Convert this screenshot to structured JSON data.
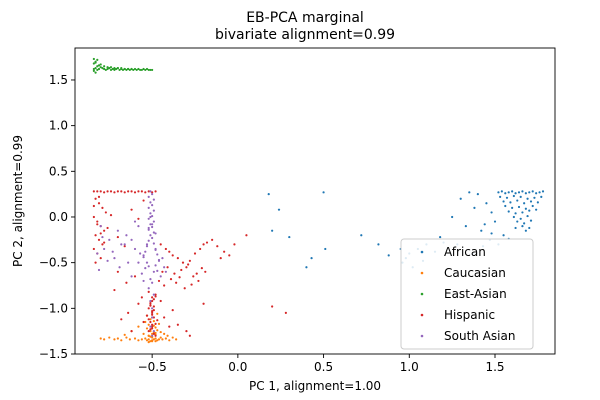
{
  "chart_data": {
    "type": "scatter",
    "title_line1": "EB-PCA marginal",
    "title_line2": "bivariate alignment=0.99",
    "xlabel": "PC 1, alignment=1.00",
    "ylabel": "PC 2, alignment=0.99",
    "xlim": [
      -0.95,
      1.85
    ],
    "ylim": [
      -1.5,
      1.85
    ],
    "xticks": [
      -0.5,
      0.0,
      0.5,
      1.0,
      1.5
    ],
    "xtick_labels": [
      "−0.5",
      "0.0",
      "0.5",
      "1.0",
      "1.5"
    ],
    "yticks": [
      -1.5,
      -1.0,
      -0.5,
      0.0,
      0.5,
      1.0,
      1.5
    ],
    "ytick_labels": [
      "−1.5",
      "−1.0",
      "−0.5",
      "0.0",
      "0.5",
      "1.0",
      "1.5"
    ],
    "grid": false,
    "legend_placement": "lower-right",
    "series": [
      {
        "name": "African",
        "color": "#1f77b4",
        "x": [
          1.52,
          1.54,
          1.56,
          1.58,
          1.6,
          1.62,
          1.64,
          1.66,
          1.68,
          1.7,
          1.72,
          1.74,
          1.76,
          1.78,
          1.53,
          1.57,
          1.61,
          1.65,
          1.69,
          1.73,
          1.77,
          1.55,
          1.59,
          1.63,
          1.67,
          1.71,
          1.75,
          1.56,
          1.6,
          1.64,
          1.68,
          1.72,
          1.58,
          1.62,
          1.66,
          1.7,
          1.74,
          1.61,
          1.65,
          1.69,
          1.63,
          1.67,
          1.71,
          1.66,
          1.7,
          1.68,
          1.4,
          1.45,
          1.48,
          1.5,
          1.35,
          1.3,
          1.42,
          1.38,
          1.55,
          1.47,
          1.33,
          1.25,
          1.28,
          1.18,
          1.1,
          1.05,
          1.0,
          0.98,
          0.96,
          1.02,
          1.08,
          1.15,
          1.2,
          0.82,
          0.88,
          0.72,
          0.95,
          1.43,
          1.37,
          1.52,
          1.48,
          1.58,
          1.62,
          1.44,
          0.5,
          0.51,
          0.43,
          0.4,
          0.3,
          0.24,
          0.18,
          0.2
        ],
        "y": [
          0.27,
          0.28,
          0.26,
          0.27,
          0.28,
          0.26,
          0.27,
          0.28,
          0.26,
          0.27,
          0.28,
          0.26,
          0.27,
          0.28,
          0.22,
          0.21,
          0.23,
          0.22,
          0.2,
          0.21,
          0.22,
          0.17,
          0.16,
          0.18,
          0.15,
          0.17,
          0.16,
          0.12,
          0.1,
          0.11,
          0.09,
          0.12,
          0.06,
          0.04,
          0.05,
          0.07,
          0.08,
          0.0,
          -0.02,
          0.01,
          -0.05,
          -0.07,
          -0.04,
          -0.1,
          -0.12,
          -0.15,
          0.25,
          0.15,
          0.05,
          -0.05,
          0.27,
          0.2,
          -0.15,
          0.1,
          -0.2,
          -0.25,
          -0.1,
          0.0,
          -0.3,
          -0.22,
          -0.3,
          -0.35,
          -0.4,
          -0.45,
          -0.5,
          -0.55,
          -0.48,
          -0.38,
          -0.28,
          -0.3,
          -0.42,
          -0.2,
          -0.35,
          -0.32,
          -0.4,
          -0.3,
          -0.18,
          -0.24,
          -0.12,
          -0.08,
          0.27,
          -0.35,
          -0.45,
          -0.55,
          -0.22,
          0.08,
          0.25,
          -0.15
        ]
      },
      {
        "name": "Caucasian",
        "color": "#ff7f0e",
        "x": [
          -0.8,
          -0.78,
          -0.75,
          -0.72,
          -0.7,
          -0.68,
          -0.65,
          -0.63,
          -0.6,
          -0.58,
          -0.56,
          -0.54,
          -0.53,
          -0.52,
          -0.51,
          -0.5,
          -0.49,
          -0.48,
          -0.47,
          -0.46,
          -0.45,
          -0.44,
          -0.42,
          -0.4,
          -0.38,
          -0.36,
          -0.52,
          -0.5,
          -0.48,
          -0.51,
          -0.49,
          -0.53,
          -0.47,
          -0.5,
          -0.52,
          -0.48,
          -0.54,
          -0.46,
          -0.51,
          -0.49,
          -0.5,
          -0.53,
          -0.47,
          -0.52,
          -0.48,
          -0.5,
          -0.51,
          -0.49,
          -0.55,
          -0.45,
          -0.62,
          -0.58,
          -0.66,
          -0.43,
          -0.41,
          -0.5,
          -0.52,
          -0.48,
          -0.5,
          -0.51
        ],
        "y": [
          -1.33,
          -1.34,
          -1.32,
          -1.34,
          -1.33,
          -1.35,
          -1.32,
          -1.34,
          -1.33,
          -1.35,
          -1.34,
          -1.33,
          -1.35,
          -1.34,
          -1.36,
          -1.35,
          -1.34,
          -1.33,
          -1.35,
          -1.34,
          -1.32,
          -1.34,
          -1.33,
          -1.35,
          -1.32,
          -1.34,
          -1.3,
          -1.28,
          -1.29,
          -1.25,
          -1.26,
          -1.22,
          -1.24,
          -1.2,
          -1.18,
          -1.21,
          -1.15,
          -1.17,
          -1.12,
          -1.14,
          -1.1,
          -1.08,
          -1.06,
          -1.3,
          -1.27,
          -1.31,
          -1.23,
          -1.19,
          -1.28,
          -1.26,
          -1.25,
          -1.2,
          -1.29,
          -1.28,
          -1.3,
          -1.36,
          -1.37,
          -1.36,
          -1.32,
          -1.31
        ]
      },
      {
        "name": "East-Asian",
        "color": "#2ca02c",
        "x": [
          -0.84,
          -0.83,
          -0.82,
          -0.81,
          -0.8,
          -0.79,
          -0.78,
          -0.77,
          -0.76,
          -0.75,
          -0.74,
          -0.73,
          -0.72,
          -0.71,
          -0.7,
          -0.69,
          -0.68,
          -0.67,
          -0.66,
          -0.65,
          -0.64,
          -0.63,
          -0.62,
          -0.61,
          -0.6,
          -0.59,
          -0.58,
          -0.57,
          -0.56,
          -0.55,
          -0.54,
          -0.53,
          -0.52,
          -0.51,
          -0.5,
          -0.84,
          -0.83,
          -0.82,
          -0.81,
          -0.8,
          -0.84,
          -0.83,
          -0.82,
          -0.84,
          -0.83,
          -0.78,
          -0.76,
          -0.74,
          -0.72,
          -0.7,
          -0.68,
          -0.66,
          -0.64,
          -0.62
        ],
        "y": [
          1.62,
          1.63,
          1.61,
          1.62,
          1.64,
          1.63,
          1.62,
          1.61,
          1.62,
          1.63,
          1.61,
          1.62,
          1.61,
          1.62,
          1.63,
          1.61,
          1.62,
          1.61,
          1.62,
          1.61,
          1.62,
          1.61,
          1.62,
          1.61,
          1.62,
          1.61,
          1.62,
          1.61,
          1.61,
          1.62,
          1.61,
          1.62,
          1.61,
          1.61,
          1.61,
          1.68,
          1.7,
          1.72,
          1.66,
          1.67,
          1.6,
          1.58,
          1.65,
          1.73,
          1.69,
          1.65,
          1.64,
          1.64,
          1.63,
          1.63,
          1.63,
          1.62,
          1.62,
          1.62
        ]
      },
      {
        "name": "Hispanic",
        "color": "#d62728",
        "x": [
          -0.84,
          -0.82,
          -0.8,
          -0.78,
          -0.76,
          -0.74,
          -0.72,
          -0.7,
          -0.68,
          -0.66,
          -0.64,
          -0.62,
          -0.6,
          -0.58,
          -0.56,
          -0.54,
          -0.52,
          -0.5,
          -0.48,
          -0.83,
          -0.81,
          -0.79,
          -0.77,
          -0.84,
          -0.82,
          -0.8,
          -0.78,
          -0.83,
          -0.81,
          -0.79,
          -0.84,
          -0.82,
          -0.8,
          -0.83,
          -0.81,
          -0.84,
          -0.82,
          -0.8,
          -0.78,
          -0.76,
          -0.74,
          -0.7,
          -0.66,
          -0.62,
          -0.58,
          -0.55,
          -0.45,
          -0.42,
          -0.4,
          -0.38,
          -0.35,
          -0.32,
          -0.3,
          -0.28,
          -0.25,
          -0.22,
          -0.2,
          -0.18,
          -0.15,
          -0.12,
          -0.1,
          -0.08,
          -0.05,
          -0.02,
          0.05,
          -0.44,
          -0.41,
          -0.37,
          -0.33,
          -0.29,
          -0.26,
          -0.23,
          -0.19,
          -0.46,
          -0.43,
          -0.39,
          -0.36,
          -0.34,
          -0.31,
          -0.27,
          -0.24,
          -0.21,
          -0.48,
          -0.49,
          -0.51,
          -0.52,
          -0.5,
          -0.49,
          -0.51,
          -0.5,
          -0.52,
          -0.48,
          -0.5,
          -0.51,
          -0.49,
          -0.5,
          -0.53,
          -0.47,
          -0.5,
          -0.51,
          -0.49,
          -0.52,
          -0.48,
          -0.5,
          -0.51,
          -0.49,
          -0.5,
          -0.52,
          -0.48,
          -0.5,
          -0.6,
          -0.65,
          -0.7,
          -0.72,
          -0.68,
          -0.64,
          -0.58,
          -0.56,
          -0.4,
          -0.35,
          -0.3,
          -0.28,
          -0.43,
          -0.55,
          -0.62,
          -0.45,
          -0.38,
          -0.2,
          0.2,
          0.28
        ],
        "y": [
          0.28,
          0.28,
          0.28,
          0.27,
          0.28,
          0.28,
          0.27,
          0.28,
          0.28,
          0.27,
          0.28,
          0.28,
          0.27,
          0.28,
          0.28,
          0.27,
          0.28,
          0.27,
          0.28,
          0.2,
          0.15,
          0.1,
          0.05,
          0.0,
          -0.05,
          -0.1,
          -0.15,
          -0.2,
          -0.25,
          -0.3,
          -0.35,
          -0.4,
          -0.45,
          -0.5,
          0.22,
          0.12,
          -0.08,
          -0.18,
          -0.28,
          -0.12,
          0.02,
          -0.22,
          -0.32,
          0.08,
          -0.02,
          0.18,
          -0.3,
          -0.35,
          -0.38,
          -0.42,
          -0.45,
          -0.5,
          -0.55,
          -0.48,
          -0.4,
          -0.35,
          -0.3,
          -0.28,
          -0.25,
          -0.32,
          -0.45,
          -0.38,
          -0.42,
          -0.3,
          -0.2,
          -0.6,
          -0.55,
          -0.62,
          -0.58,
          -0.52,
          -0.65,
          -0.7,
          -0.6,
          -0.7,
          -0.75,
          -0.68,
          -0.72,
          -0.66,
          -0.78,
          -0.74,
          -0.62,
          -0.56,
          -0.85,
          -0.9,
          -0.95,
          -1.0,
          -1.05,
          -1.1,
          -1.15,
          -1.2,
          -1.25,
          -1.3,
          -0.88,
          -0.93,
          -0.98,
          -1.03,
          -1.08,
          -1.13,
          -1.18,
          -1.23,
          -1.28,
          -0.82,
          -0.87,
          -0.92,
          -0.97,
          -1.02,
          -1.07,
          -1.12,
          -1.17,
          -1.22,
          -0.65,
          -0.72,
          -0.6,
          -0.8,
          -1.12,
          -1.05,
          -0.95,
          -0.88,
          -1.2,
          -1.18,
          -1.25,
          -1.3,
          -1.1,
          -1.15,
          -1.25,
          -0.92,
          -1.02,
          -0.95,
          -0.98,
          -1.05
        ]
      },
      {
        "name": "South Asian",
        "color": "#9467bd",
        "x": [
          -0.51,
          -0.5,
          -0.52,
          -0.49,
          -0.51,
          -0.5,
          -0.52,
          -0.49,
          -0.51,
          -0.5,
          -0.52,
          -0.49,
          -0.51,
          -0.5,
          -0.52,
          -0.49,
          -0.51,
          -0.5,
          -0.52,
          -0.49,
          -0.53,
          -0.48,
          -0.54,
          -0.47,
          -0.55,
          -0.46,
          -0.53,
          -0.48,
          -0.54,
          -0.47,
          -0.56,
          -0.45,
          -0.53,
          -0.48,
          -0.55,
          -0.46,
          -0.52,
          -0.49,
          -0.51,
          -0.5,
          -0.52,
          -0.49,
          -0.51,
          -0.5,
          -0.57,
          -0.44,
          -0.58,
          -0.43,
          -0.6,
          -0.42,
          -0.62,
          -0.65,
          -0.68,
          -0.7,
          -0.72,
          -0.75,
          -0.78,
          -0.8,
          -0.82,
          -0.64,
          -0.66,
          -0.69,
          -0.73,
          -0.76,
          -0.79,
          -0.81,
          -0.58,
          -0.6,
          -0.62,
          -0.55,
          -0.5,
          -0.51,
          -0.49,
          -0.5,
          -0.52,
          -0.48,
          -0.5,
          -0.51
        ],
        "y": [
          0.28,
          0.25,
          0.22,
          0.19,
          0.16,
          0.13,
          0.1,
          0.07,
          0.04,
          0.01,
          -0.02,
          -0.05,
          -0.08,
          -0.11,
          -0.14,
          -0.17,
          -0.2,
          -0.23,
          -0.26,
          -0.29,
          -0.32,
          -0.35,
          -0.38,
          -0.41,
          -0.44,
          -0.47,
          -0.5,
          -0.53,
          -0.56,
          -0.59,
          -0.62,
          -0.65,
          -0.3,
          -0.36,
          -0.42,
          -0.48,
          -0.54,
          -0.6,
          -0.68,
          -0.72,
          -0.78,
          -0.85,
          -0.92,
          -1.0,
          -0.4,
          -0.45,
          -0.5,
          -0.55,
          -0.35,
          -0.6,
          -0.25,
          -0.2,
          -0.3,
          -0.15,
          -0.45,
          -0.25,
          -0.35,
          -0.1,
          -0.4,
          -0.5,
          -0.3,
          -0.55,
          -0.38,
          -0.48,
          -0.22,
          -0.58,
          -0.1,
          -0.05,
          -0.65,
          -0.7,
          -1.1,
          -1.2,
          -1.25,
          -1.3,
          -0.12,
          -0.18,
          -0.08,
          0.0
        ]
      }
    ]
  }
}
